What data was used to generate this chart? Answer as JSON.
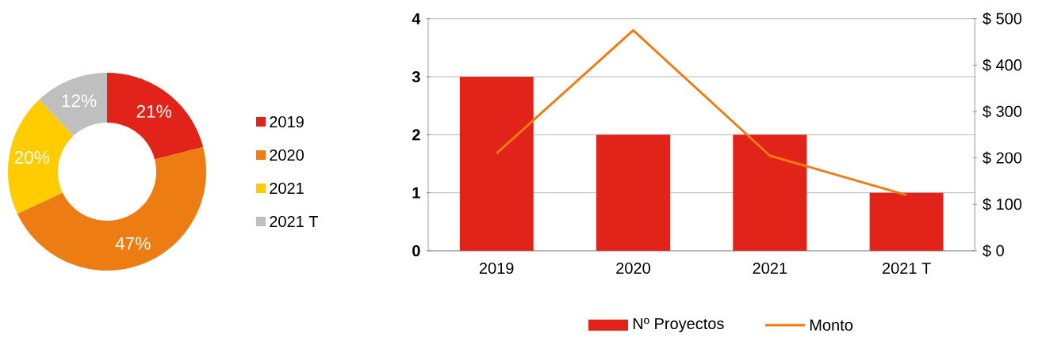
{
  "chart_data": [
    {
      "type": "donut",
      "categories": [
        "2019",
        "2020",
        "2021",
        "2021 T"
      ],
      "values": [
        21,
        47,
        20,
        12
      ],
      "colors": [
        "#e2231a",
        "#ed7d12",
        "#ffcc00",
        "#c0bfbf"
      ],
      "value_labels": [
        "21%",
        "47%",
        "20%",
        "12%"
      ],
      "legend": "right"
    },
    {
      "type": "bar",
      "categories": [
        "2019",
        "2020",
        "2021",
        "2021 T"
      ],
      "series": [
        {
          "name": "Nº Proyectos",
          "type": "bar",
          "color": "#e2231a",
          "values": [
            3,
            2,
            2,
            1
          ]
        },
        {
          "name": "Monto",
          "type": "line",
          "axis": "y2",
          "color": "#ed7d12",
          "values": [
            210,
            475,
            205,
            120
          ]
        }
      ],
      "ylim": [
        0,
        4
      ],
      "yticks": [
        0,
        1,
        2,
        3,
        4
      ],
      "y2lim": [
        0,
        500
      ],
      "y2ticks": [
        {
          "value": 0,
          "label": "$ 0"
        },
        {
          "value": 100,
          "label": "$ 100"
        },
        {
          "value": 200,
          "label": "$ 200"
        },
        {
          "value": 300,
          "label": "$ 300"
        },
        {
          "value": 400,
          "label": "$ 400"
        },
        {
          "value": 500,
          "label": "$ 500"
        }
      ],
      "grid": "y",
      "legend": "bottom"
    }
  ]
}
